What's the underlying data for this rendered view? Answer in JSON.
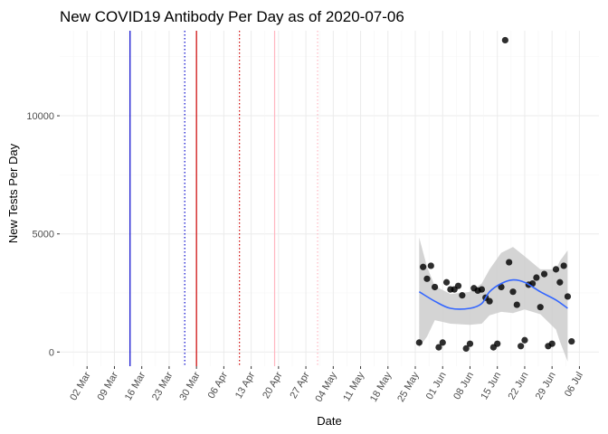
{
  "chart_data": {
    "type": "scatter",
    "title": "New COVID19 Antibody Per Day as of 2020-07-06",
    "xlabel": "Date",
    "ylabel": "New Tests Per Day",
    "x_range": [
      "2020-02-24",
      "2020-07-11"
    ],
    "ylim": [
      -600,
      13600
    ],
    "y_ticks": [
      0,
      5000,
      10000
    ],
    "x_ticks": [
      {
        "date": "2020-03-02",
        "label": "02 Mar"
      },
      {
        "date": "2020-03-09",
        "label": "09 Mar"
      },
      {
        "date": "2020-03-16",
        "label": "16 Mar"
      },
      {
        "date": "2020-03-23",
        "label": "23 Mar"
      },
      {
        "date": "2020-03-30",
        "label": "30 Mar"
      },
      {
        "date": "2020-04-06",
        "label": "06 Apr"
      },
      {
        "date": "2020-04-13",
        "label": "13 Apr"
      },
      {
        "date": "2020-04-20",
        "label": "20 Apr"
      },
      {
        "date": "2020-04-27",
        "label": "27 Apr"
      },
      {
        "date": "2020-05-04",
        "label": "04 May"
      },
      {
        "date": "2020-05-11",
        "label": "11 May"
      },
      {
        "date": "2020-05-18",
        "label": "18 May"
      },
      {
        "date": "2020-05-25",
        "label": "25 May"
      },
      {
        "date": "2020-06-01",
        "label": "01 Jun"
      },
      {
        "date": "2020-06-08",
        "label": "08 Jun"
      },
      {
        "date": "2020-06-15",
        "label": "15 Jun"
      },
      {
        "date": "2020-06-22",
        "label": "22 Jun"
      },
      {
        "date": "2020-06-29",
        "label": "29 Jun"
      },
      {
        "date": "2020-07-06",
        "label": "06 Jul"
      }
    ],
    "grid": true,
    "vlines": [
      {
        "date": "2020-03-13",
        "color": "#0000cc",
        "style": "solid"
      },
      {
        "date": "2020-03-27",
        "color": "#0000cc",
        "style": "dotted"
      },
      {
        "date": "2020-03-30",
        "color": "#cc0000",
        "style": "solid"
      },
      {
        "date": "2020-04-10",
        "color": "#cc0000",
        "style": "dotted"
      },
      {
        "date": "2020-04-19",
        "color": "#ffb6c1",
        "style": "solid"
      },
      {
        "date": "2020-04-30",
        "color": "#ffb6c1",
        "style": "dotted"
      }
    ],
    "points": [
      {
        "x": "2020-05-26",
        "y": 400
      },
      {
        "x": "2020-05-27",
        "y": 3600
      },
      {
        "x": "2020-05-28",
        "y": 3100
      },
      {
        "x": "2020-05-29",
        "y": 3650
      },
      {
        "x": "2020-05-30",
        "y": 2750
      },
      {
        "x": "2020-05-31",
        "y": 200
      },
      {
        "x": "2020-06-01",
        "y": 400
      },
      {
        "x": "2020-06-02",
        "y": 2950
      },
      {
        "x": "2020-06-03",
        "y": 2650
      },
      {
        "x": "2020-06-04",
        "y": 2650
      },
      {
        "x": "2020-06-05",
        "y": 2800
      },
      {
        "x": "2020-06-06",
        "y": 2400
      },
      {
        "x": "2020-06-07",
        "y": 150
      },
      {
        "x": "2020-06-08",
        "y": 350
      },
      {
        "x": "2020-06-09",
        "y": 2700
      },
      {
        "x": "2020-06-10",
        "y": 2600
      },
      {
        "x": "2020-06-11",
        "y": 2650
      },
      {
        "x": "2020-06-12",
        "y": 2300
      },
      {
        "x": "2020-06-13",
        "y": 2150
      },
      {
        "x": "2020-06-14",
        "y": 200
      },
      {
        "x": "2020-06-15",
        "y": 350
      },
      {
        "x": "2020-06-16",
        "y": 2750
      },
      {
        "x": "2020-06-17",
        "y": 13200
      },
      {
        "x": "2020-06-18",
        "y": 3800
      },
      {
        "x": "2020-06-19",
        "y": 2550
      },
      {
        "x": "2020-06-20",
        "y": 2000
      },
      {
        "x": "2020-06-21",
        "y": 250
      },
      {
        "x": "2020-06-22",
        "y": 500
      },
      {
        "x": "2020-06-23",
        "y": 2850
      },
      {
        "x": "2020-06-24",
        "y": 2900
      },
      {
        "x": "2020-06-25",
        "y": 3150
      },
      {
        "x": "2020-06-26",
        "y": 1900
      },
      {
        "x": "2020-06-27",
        "y": 3300
      },
      {
        "x": "2020-06-28",
        "y": 250
      },
      {
        "x": "2020-06-29",
        "y": 350
      },
      {
        "x": "2020-06-30",
        "y": 3500
      },
      {
        "x": "2020-07-01",
        "y": 2950
      },
      {
        "x": "2020-07-02",
        "y": 3650
      },
      {
        "x": "2020-07-03",
        "y": 2350
      },
      {
        "x": "2020-07-04",
        "y": 450
      }
    ],
    "smooth": {
      "color": "#3366ff",
      "band_color": "#cccccc",
      "fit": [
        {
          "x": "2020-05-26",
          "y": 2550
        },
        {
          "x": "2020-05-30",
          "y": 2150
        },
        {
          "x": "2020-06-03",
          "y": 1850
        },
        {
          "x": "2020-06-08",
          "y": 1850
        },
        {
          "x": "2020-06-11",
          "y": 2050
        },
        {
          "x": "2020-06-13",
          "y": 2550
        },
        {
          "x": "2020-06-16",
          "y": 2900
        },
        {
          "x": "2020-06-19",
          "y": 3050
        },
        {
          "x": "2020-06-22",
          "y": 2950
        },
        {
          "x": "2020-06-26",
          "y": 2550
        },
        {
          "x": "2020-06-30",
          "y": 2200
        },
        {
          "x": "2020-07-03",
          "y": 1850
        }
      ],
      "upper": [
        {
          "x": "2020-05-26",
          "y": 4850
        },
        {
          "x": "2020-05-28",
          "y": 3600
        },
        {
          "x": "2020-05-30",
          "y": 2800
        },
        {
          "x": "2020-06-03",
          "y": 2450
        },
        {
          "x": "2020-06-08",
          "y": 2550
        },
        {
          "x": "2020-06-11",
          "y": 2900
        },
        {
          "x": "2020-06-13",
          "y": 3500
        },
        {
          "x": "2020-06-16",
          "y": 4200
        },
        {
          "x": "2020-06-19",
          "y": 4450
        },
        {
          "x": "2020-06-22",
          "y": 4050
        },
        {
          "x": "2020-06-26",
          "y": 3500
        },
        {
          "x": "2020-06-30",
          "y": 3500
        },
        {
          "x": "2020-07-01",
          "y": 3850
        },
        {
          "x": "2020-07-03",
          "y": 4300
        }
      ],
      "lower": [
        {
          "x": "2020-05-26",
          "y": 200
        },
        {
          "x": "2020-05-28",
          "y": 650
        },
        {
          "x": "2020-05-30",
          "y": 1350
        },
        {
          "x": "2020-06-03",
          "y": 1200
        },
        {
          "x": "2020-06-08",
          "y": 1150
        },
        {
          "x": "2020-06-11",
          "y": 1200
        },
        {
          "x": "2020-06-13",
          "y": 1550
        },
        {
          "x": "2020-06-16",
          "y": 1700
        },
        {
          "x": "2020-06-19",
          "y": 1650
        },
        {
          "x": "2020-06-22",
          "y": 1800
        },
        {
          "x": "2020-06-26",
          "y": 1600
        },
        {
          "x": "2020-06-30",
          "y": 950
        },
        {
          "x": "2020-07-01",
          "y": 450
        },
        {
          "x": "2020-07-03",
          "y": -400
        }
      ]
    },
    "point_color": "#000000"
  }
}
